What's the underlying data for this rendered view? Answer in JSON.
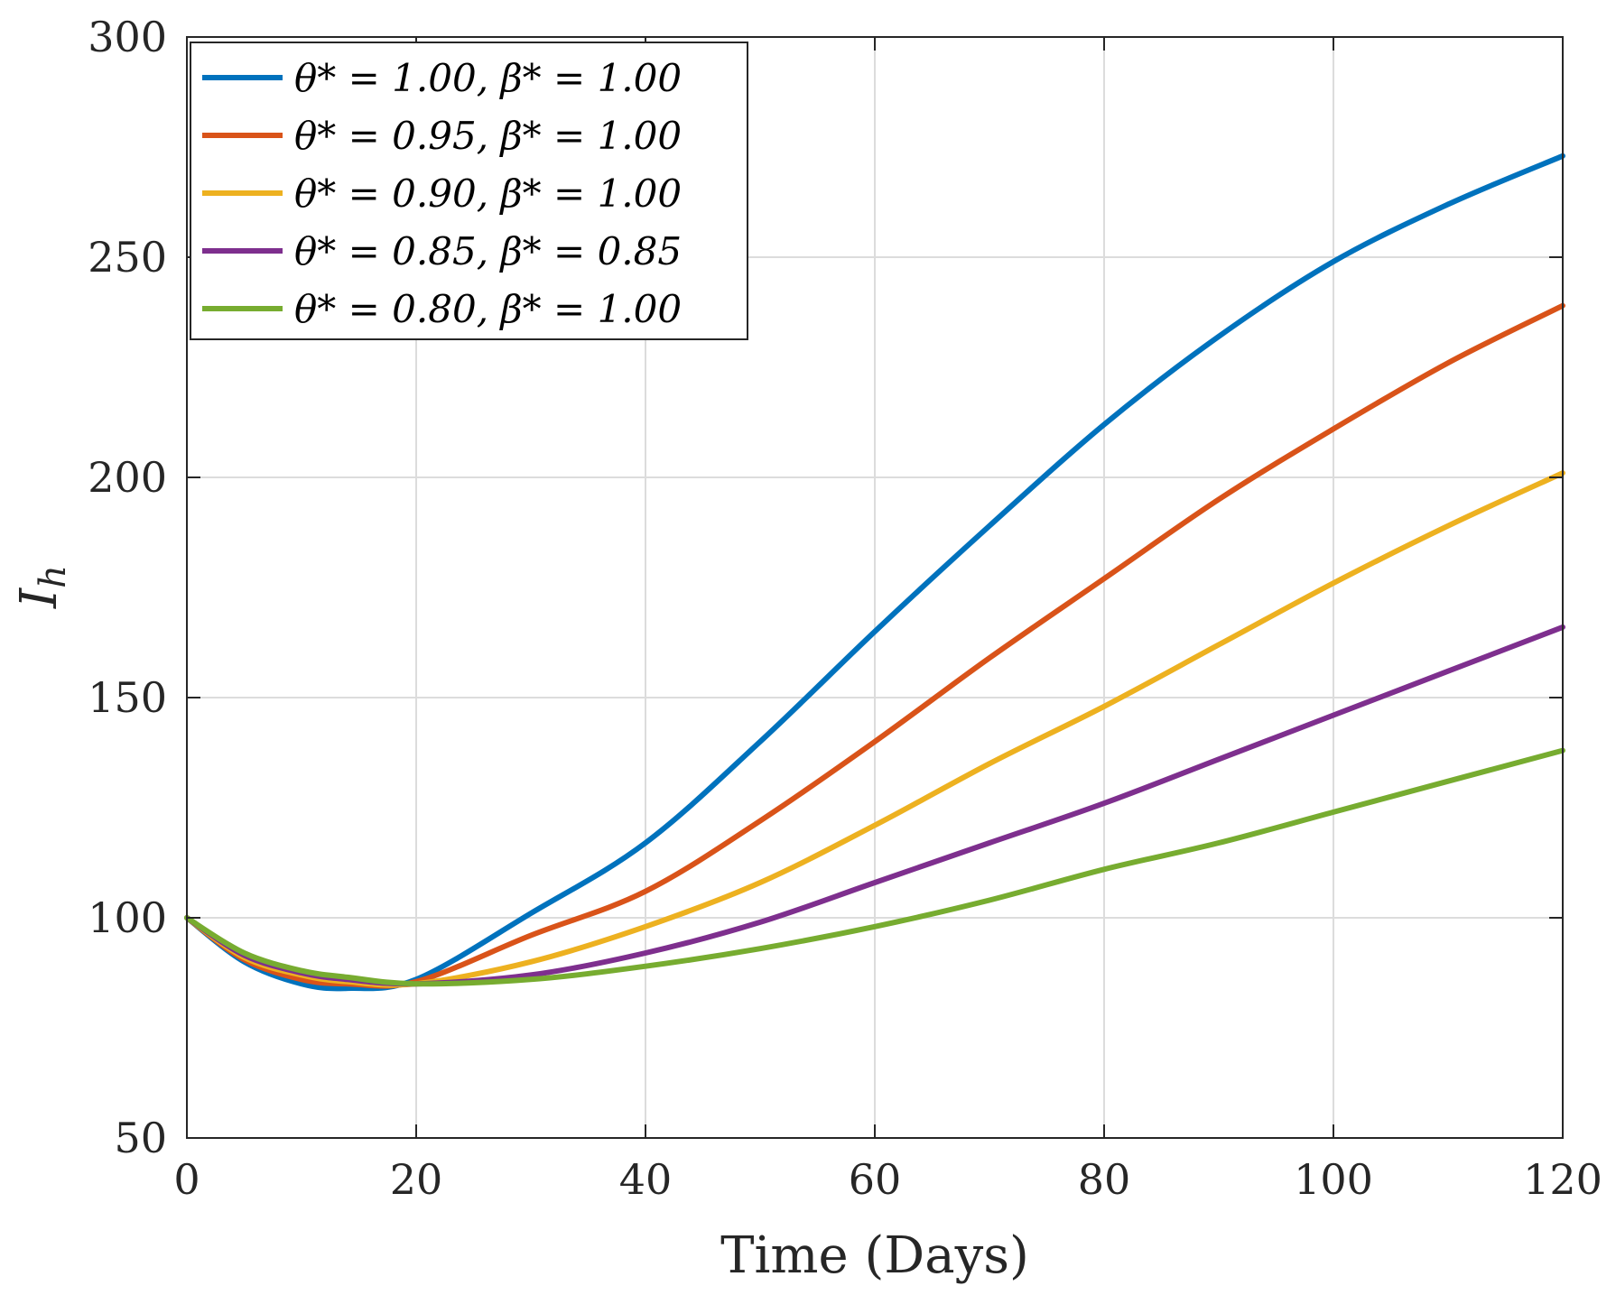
{
  "chart_data": {
    "type": "line",
    "title": "",
    "xlabel": "Time (Days)",
    "ylabel": "I_h",
    "ylabel_main": "I",
    "ylabel_sub": "h",
    "xlim": [
      0,
      120
    ],
    "ylim": [
      50,
      300
    ],
    "xticks": [
      0,
      20,
      40,
      60,
      80,
      100,
      120
    ],
    "yticks": [
      50,
      100,
      150,
      200,
      250,
      300
    ],
    "grid": true,
    "legend_position": "top-left",
    "x": [
      0,
      5,
      10,
      14,
      20,
      30,
      40,
      50,
      60,
      70,
      80,
      90,
      100,
      110,
      120
    ],
    "series": [
      {
        "name": "θ* = 1.00, β* = 1.00",
        "color": "#0072BD",
        "values": [
          100,
          90,
          85,
          84,
          86,
          101,
          117,
          140,
          165,
          189,
          212,
          232,
          249,
          262,
          273
        ]
      },
      {
        "name": "θ* = 0.95, β* = 1.00",
        "color": "#D95319",
        "values": [
          100,
          90.5,
          86,
          85,
          85.5,
          96,
          106,
          122,
          140,
          159,
          177,
          195,
          211,
          226,
          239
        ]
      },
      {
        "name": "θ* = 0.90, β* = 1.00",
        "color": "#EDB120",
        "values": [
          100,
          91,
          87,
          85.5,
          85,
          90,
          98,
          108,
          121,
          135,
          148,
          162,
          176,
          189,
          201
        ]
      },
      {
        "name": "θ* = 0.85, β* = 0.85",
        "color": "#7E2F8E",
        "values": [
          100,
          91.5,
          87.5,
          86,
          85,
          87,
          92,
          99,
          108,
          117,
          126,
          136,
          146,
          156,
          166
        ]
      },
      {
        "name": "θ* = 0.80, β* = 1.00",
        "color": "#77AC30",
        "values": [
          100,
          92,
          88,
          86.5,
          85,
          86,
          89,
          93,
          98,
          104,
          111,
          117,
          124,
          131,
          138
        ]
      }
    ]
  }
}
